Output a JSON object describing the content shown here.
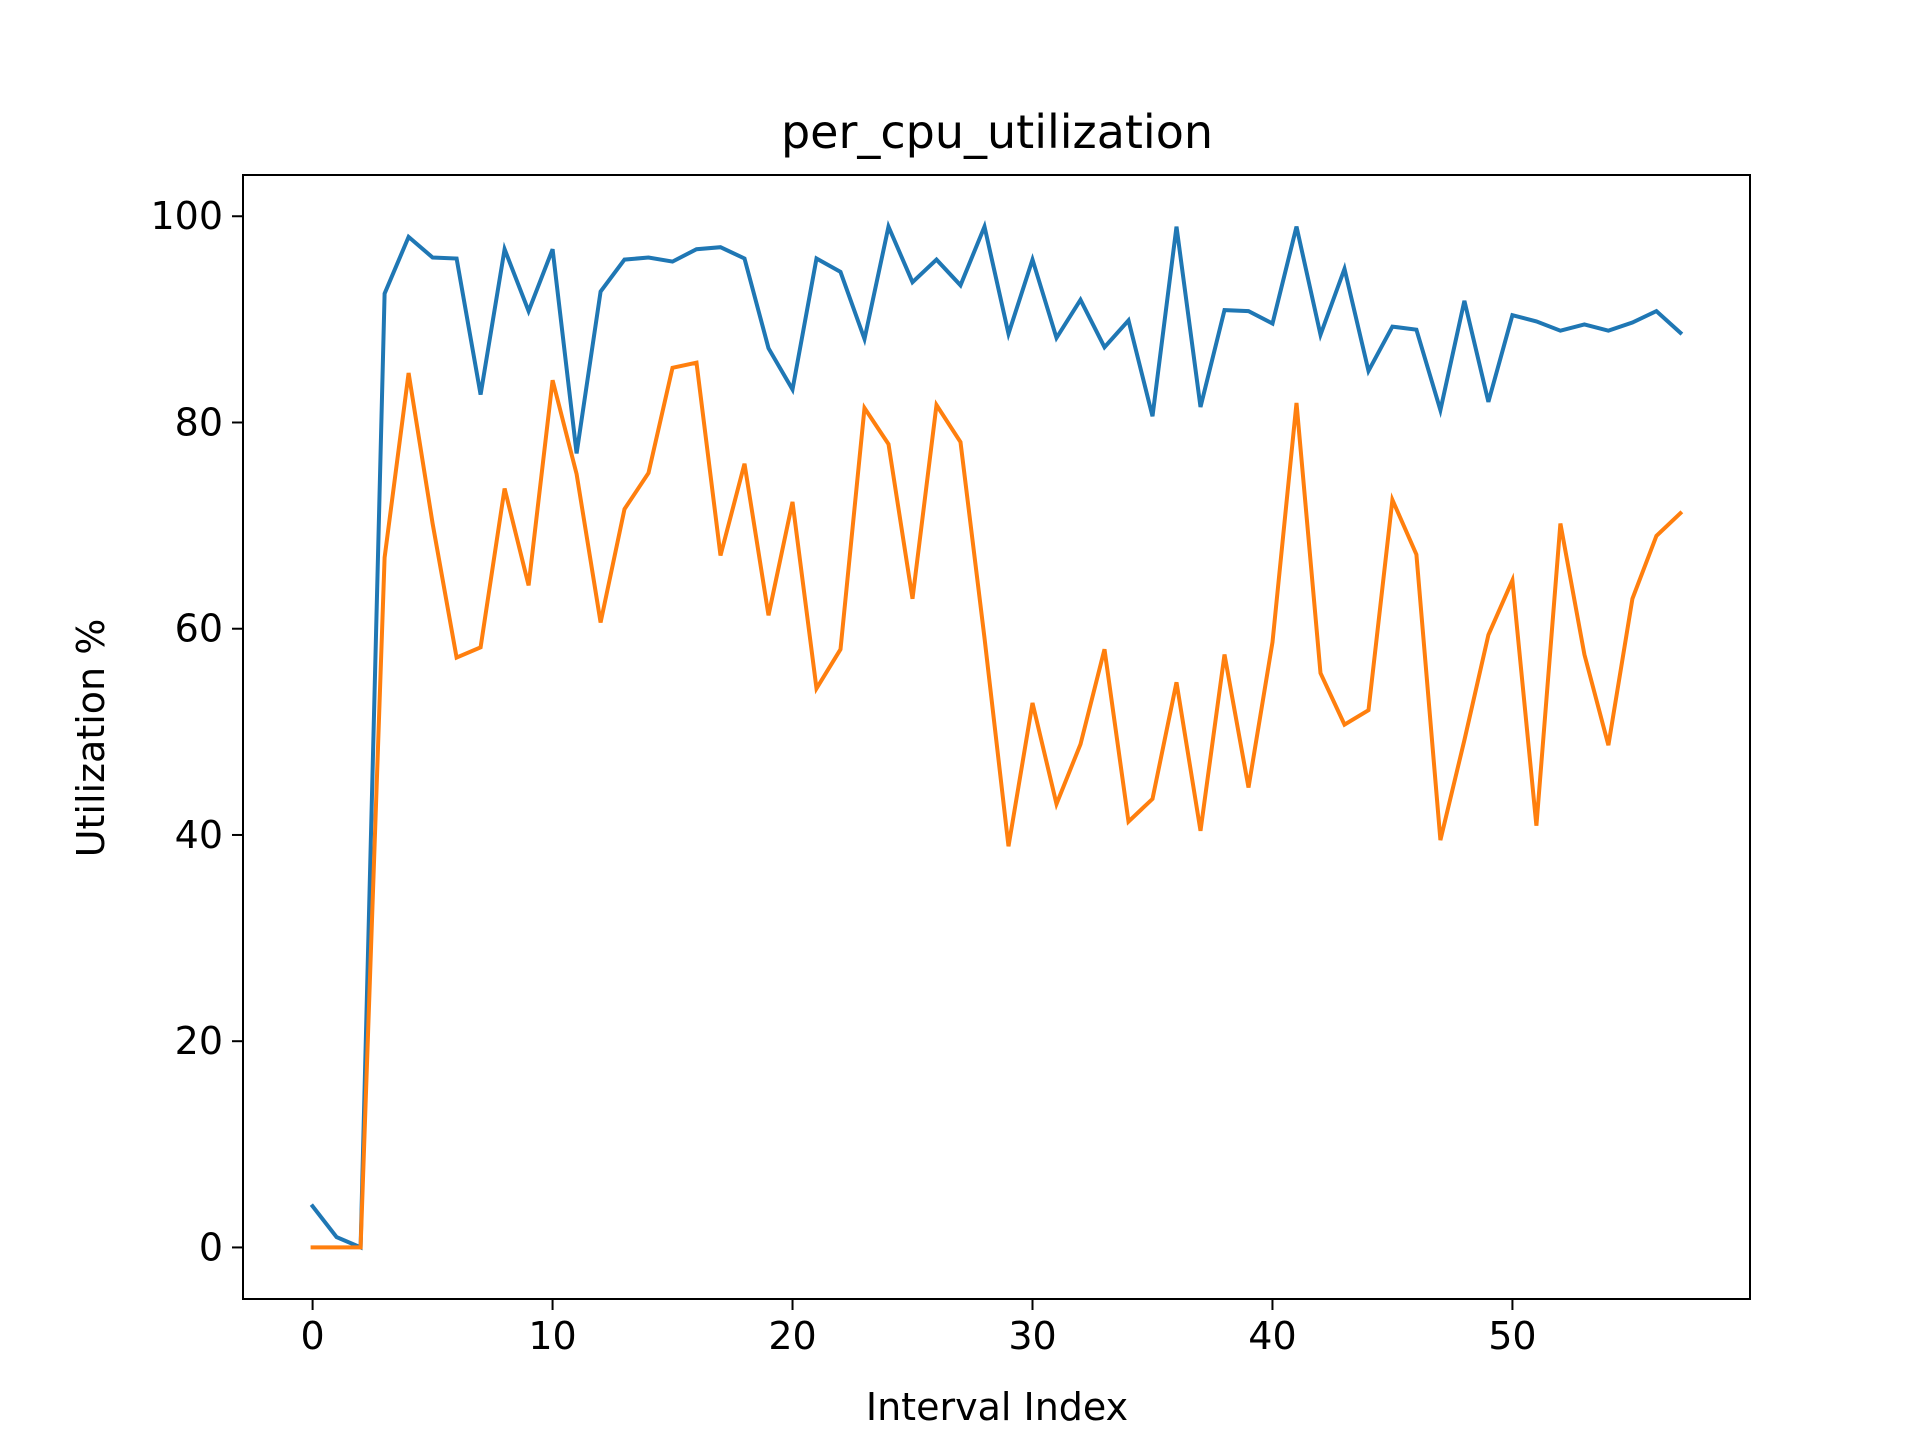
{
  "chart_data": {
    "type": "line",
    "title": "per_cpu_utilization",
    "xlabel": "Interval Index",
    "ylabel": "Utilization %",
    "xlim": [
      -2.9,
      59.9
    ],
    "ylim": [
      -5,
      104
    ],
    "xticks": [
      0,
      10,
      20,
      30,
      40,
      50
    ],
    "yticks": [
      0,
      20,
      40,
      60,
      80,
      100
    ],
    "grid": false,
    "legend": "none",
    "x": [
      0,
      1,
      2,
      3,
      4,
      5,
      6,
      7,
      8,
      9,
      10,
      11,
      12,
      13,
      14,
      15,
      16,
      17,
      18,
      19,
      20,
      21,
      22,
      23,
      24,
      25,
      26,
      27,
      28,
      29,
      30,
      31,
      32,
      33,
      34,
      35,
      36,
      37,
      38,
      39,
      40,
      41,
      42,
      43,
      44,
      45,
      46,
      47,
      48,
      49,
      50,
      51,
      52,
      53,
      54,
      55,
      56,
      57
    ],
    "series": [
      {
        "color": "#1f77b4",
        "values": [
          4,
          1,
          0,
          92.5,
          98,
          96,
          95.9,
          82.7,
          96.8,
          90.8,
          96.8,
          77,
          92.7,
          95.8,
          96,
          95.6,
          96.8,
          97,
          95.9,
          87.2,
          83.2,
          95.9,
          94.6,
          88.1,
          99,
          93.6,
          95.8,
          93.3,
          99,
          88.6,
          95.8,
          88.2,
          91.9,
          87.3,
          89.9,
          80.6,
          99,
          81.5,
          90.9,
          90.8,
          89.6,
          99,
          88.5,
          94.9,
          85,
          89.3,
          89,
          81.2,
          91.8,
          82,
          90.4,
          89.8,
          88.9,
          89.5,
          88.9,
          89.7,
          90.8,
          88.7
        ]
      },
      {
        "color": "#ff7f0e",
        "values": [
          0,
          0,
          0,
          66.9,
          84.8,
          70.2,
          57.2,
          58.2,
          73.6,
          64.2,
          84.1,
          75,
          60.6,
          71.6,
          75.1,
          85.3,
          85.8,
          67.1,
          76,
          61.3,
          72.3,
          54.2,
          58,
          81.4,
          77.9,
          62.9,
          81.7,
          78.1,
          59.1,
          38.9,
          52.8,
          43,
          48.8,
          58,
          41.3,
          43.5,
          54.8,
          40.4,
          57.5,
          44.6,
          58.7,
          81.9,
          55.7,
          50.7,
          52.1,
          72.5,
          67.2,
          39.5,
          49.2,
          59.4,
          64.7,
          40.9,
          70.2,
          57.5,
          48.7,
          62.9,
          69,
          71.2
        ]
      }
    ]
  }
}
